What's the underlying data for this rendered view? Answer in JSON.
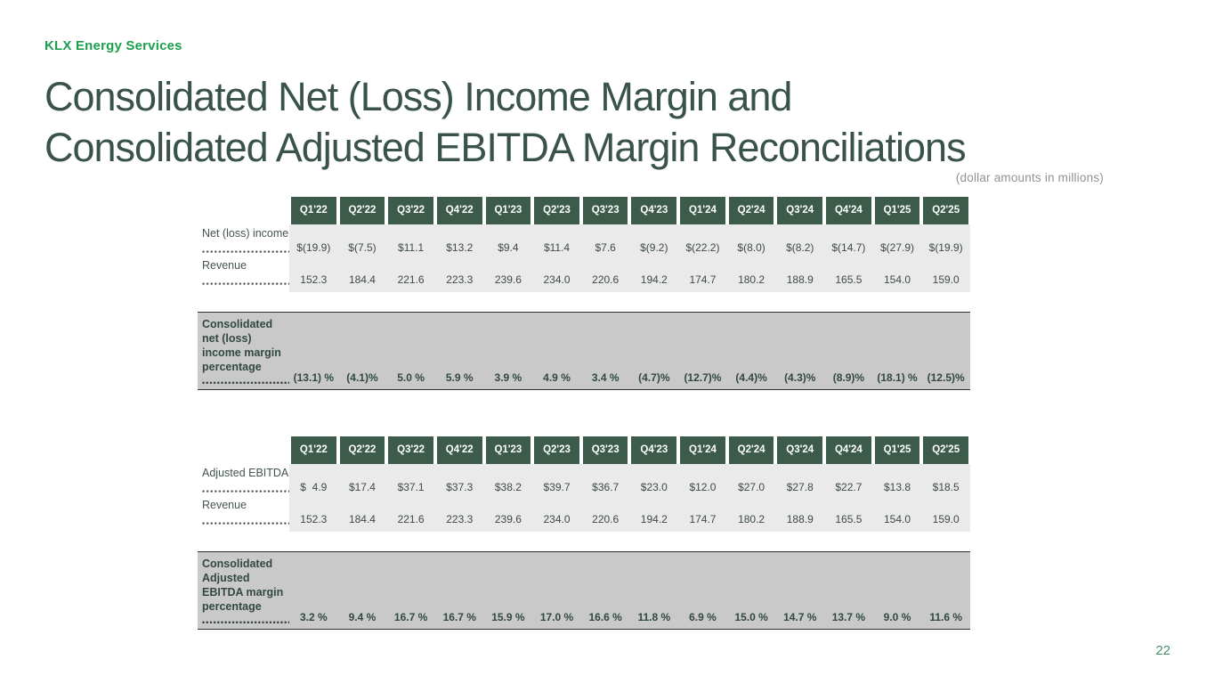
{
  "brand": "KLX Energy Services",
  "title": {
    "line1": "Consolidated Net (Loss) Income Margin and",
    "line2": "Consolidated Adjusted EBITDA Margin Reconciliations"
  },
  "note": "(dollar amounts in millions)",
  "page_number": "22",
  "quarters": [
    "Q1'22",
    "Q2'22",
    "Q3'22",
    "Q4'22",
    "Q1'23",
    "Q2'23",
    "Q3'23",
    "Q4'23",
    "Q1'24",
    "Q2'24",
    "Q3'24",
    "Q4'24",
    "Q1'25",
    "Q2'25"
  ],
  "income_table": {
    "rows": [
      {
        "label": "Net (loss) income",
        "values": [
          "$(19.9)",
          "$(7.5)",
          "$11.1",
          "$13.2",
          "$9.4",
          "$11.4",
          "$7.6",
          "$(9.2)",
          "$(22.2)",
          "$(8.0)",
          "$(8.2)",
          "$(14.7)",
          "$(27.9)",
          "$(19.9)"
        ]
      },
      {
        "label": "Revenue",
        "values": [
          "152.3",
          "184.4",
          "221.6",
          "223.3",
          "239.6",
          "234.0",
          "220.6",
          "194.2",
          "174.7",
          "180.2",
          "188.9",
          "165.5",
          "154.0",
          "159.0"
        ]
      }
    ]
  },
  "income_margin_band": {
    "label_lines": [
      "Consolidated",
      "net (loss)",
      "income margin",
      "percentage"
    ],
    "values": [
      "(13.1) %",
      "(4.1)%",
      "5.0 %",
      "5.9 %",
      "3.9 %",
      "4.9 %",
      "3.4 %",
      "(4.7)%",
      "(12.7)%",
      "(4.4)%",
      "(4.3)%",
      "(8.9)%",
      "(18.1) %",
      "(12.5)%"
    ]
  },
  "ebitda_table": {
    "rows": [
      {
        "label": "Adjusted EBITDA",
        "values": [
          "$  4.9",
          "$17.4",
          "$37.1",
          "$37.3",
          "$38.2",
          "$39.7",
          "$36.7",
          "$23.0",
          "$12.0",
          "$27.0",
          "$27.8",
          "$22.7",
          "$13.8",
          "$18.5"
        ]
      },
      {
        "label": "Revenue",
        "values": [
          "152.3",
          "184.4",
          "221.6",
          "223.3",
          "239.6",
          "234.0",
          "220.6",
          "194.2",
          "174.7",
          "180.2",
          "188.9",
          "165.5",
          "154.0",
          "159.0"
        ]
      }
    ]
  },
  "ebitda_margin_band": {
    "label_lines": [
      "Consolidated",
      "Adjusted",
      "EBITDA margin",
      "percentage"
    ],
    "values": [
      "3.2 %",
      "9.4 %",
      "16.7 %",
      "16.7 %",
      "15.9 %",
      "17.0 %",
      "16.6 %",
      "11.8 %",
      "6.9 %",
      "15.0 %",
      "14.7 %",
      "13.7 %",
      "9.0 %",
      "11.6 %"
    ]
  },
  "colors": {
    "brand_green": "#1C9F4E",
    "title_green": "#3A534A",
    "header_green": "#3C5B4B",
    "table_bg": "#E9EAE9",
    "band_bg": "#C8C9C8"
  }
}
